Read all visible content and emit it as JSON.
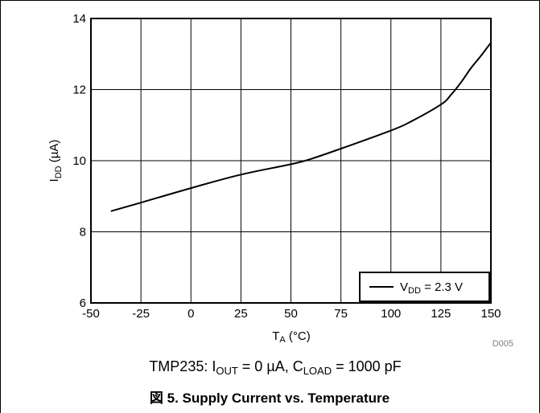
{
  "chart_data": {
    "type": "line",
    "xlabel": {
      "main": "T",
      "sub": "A",
      "unit": " (°C)"
    },
    "ylabel": {
      "main": "I",
      "sub": "DD",
      "unit": " (µA)"
    },
    "xlim": [
      -50,
      150
    ],
    "ylim": [
      6,
      14
    ],
    "xticks": [
      "-50",
      "-25",
      "0",
      "25",
      "50",
      "75",
      "100",
      "125",
      "150"
    ],
    "yticks": [
      "6",
      "8",
      "10",
      "12",
      "14"
    ],
    "grid": true,
    "legend_position": "bottom-right",
    "series": [
      {
        "name": "V_DD = 2.3 V",
        "legend": {
          "main": "V",
          "sub": "DD",
          "rest": " = 2.3 V"
        },
        "color": "#000000",
        "x": [
          -40,
          -25,
          0,
          25,
          50,
          60,
          75,
          100,
          110,
          125,
          130,
          135,
          140,
          145,
          150
        ],
        "y": [
          8.58,
          8.82,
          9.23,
          9.61,
          9.9,
          10.05,
          10.34,
          10.85,
          11.1,
          11.58,
          11.85,
          12.2,
          12.6,
          12.95,
          13.32
        ]
      }
    ],
    "annotation": "D005"
  },
  "conditions": {
    "prefix": "TMP235: I",
    "iout_sub": "OUT",
    "iout_val": " = 0 µA, C",
    "cload_sub": "LOAD",
    "cload_val": " = 1000 pF"
  },
  "figure_title": "図 5. Supply Current vs. Temperature",
  "colors": {
    "axis": "#000000",
    "grid": "#000000",
    "frame": "#000000"
  }
}
